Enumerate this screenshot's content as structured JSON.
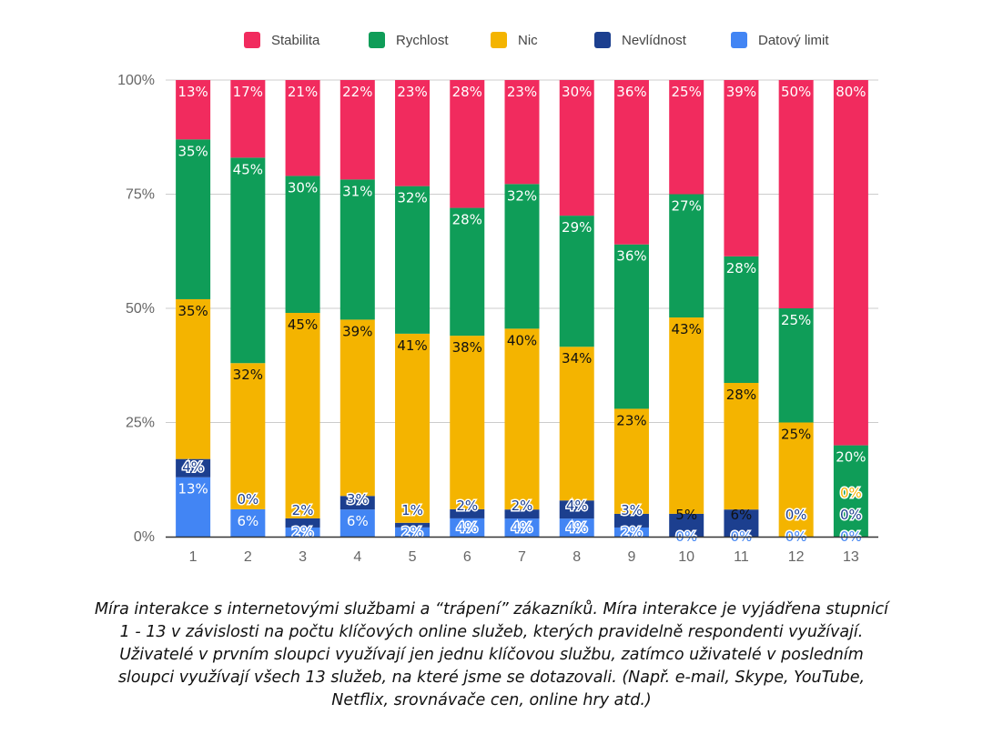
{
  "chart_data": {
    "type": "bar",
    "stacked": true,
    "normalized": true,
    "categories": [
      "1",
      "2",
      "3",
      "4",
      "5",
      "6",
      "7",
      "8",
      "9",
      "10",
      "11",
      "12",
      "13"
    ],
    "y_ticks": [
      "0%",
      "25%",
      "50%",
      "75%",
      "100%"
    ],
    "ylim": [
      0,
      100
    ],
    "grid": true,
    "legend_position": "top",
    "series": [
      {
        "name": "Datový limit",
        "color": "#4285f4",
        "values": [
          13,
          6,
          2,
          6,
          2,
          4,
          4,
          4,
          2,
          0,
          0,
          0,
          0
        ],
        "labels": [
          "13%",
          "6%",
          "2%",
          "6%",
          "2%",
          "4%",
          "4%",
          "4%",
          "2%",
          "0%",
          "0%",
          "0%",
          "0%"
        ]
      },
      {
        "name": "Nevlídnost",
        "color": "#1c3f8f",
        "values": [
          4,
          0,
          2,
          3,
          1,
          2,
          2,
          4,
          3,
          5,
          6,
          0,
          0
        ],
        "labels": [
          "4%",
          "0%",
          "2%",
          "3%",
          "1%",
          "2%",
          "2%",
          "4%",
          "3%",
          "5%",
          "6%",
          "0%",
          "0%"
        ]
      },
      {
        "name": "Nic",
        "color": "#f4b400",
        "values": [
          35,
          32,
          45,
          39,
          41,
          38,
          40,
          34,
          23,
          43,
          28,
          25,
          0
        ],
        "labels": [
          "35%",
          "32%",
          "45%",
          "39%",
          "41%",
          "38%",
          "40%",
          "34%",
          "23%",
          "43%",
          "28%",
          "25%",
          "0%"
        ]
      },
      {
        "name": "Rychlost",
        "color": "#0f9d58",
        "values": [
          35,
          45,
          30,
          31,
          32,
          28,
          32,
          29,
          36,
          27,
          28,
          25,
          20
        ],
        "labels": [
          "35%",
          "45%",
          "30%",
          "31%",
          "32%",
          "28%",
          "32%",
          "29%",
          "36%",
          "27%",
          "28%",
          "25%",
          "20%"
        ]
      },
      {
        "name": "Stabilita",
        "color": "#f12b5e",
        "values": [
          13,
          17,
          21,
          22,
          23,
          28,
          23,
          30,
          36,
          25,
          39,
          50,
          80
        ],
        "labels": [
          "13%",
          "17%",
          "21%",
          "22%",
          "23%",
          "28%",
          "23%",
          "30%",
          "36%",
          "25%",
          "39%",
          "50%",
          "80%"
        ]
      }
    ]
  },
  "caption": "Míra interakce s internetovými službami a “trápení” zákazníků. Míra interakce je vyjádřena stupnicí 1 - 13 v závislosti na počtu klíčových online služeb, kterých pravidelně respondenti využívají. Uživatelé v prvním sloupci využívají jen jednu klíčovou službu, zatímco uživatelé v posledním sloupci využívají všech 13 služeb, na které jsme se dotazovali. (Např. e-mail, Skype, YouTube, Netflix, srovnávače cen, online hry atd.)"
}
